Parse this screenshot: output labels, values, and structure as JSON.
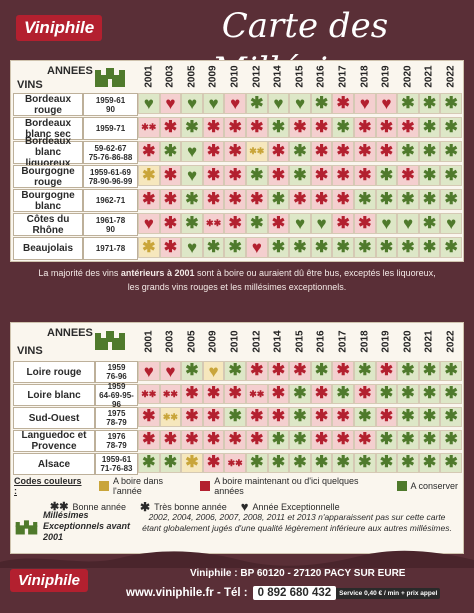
{
  "brand": {
    "name": "Viniphile",
    "title": "Carte des Millésimes"
  },
  "colors": {
    "red": "#b3202f",
    "green": "#4f7a2c",
    "gold": "#c9a53a",
    "bg": "#5a2f37"
  },
  "table1": {
    "hdr_annees": "ANNEES",
    "hdr_vins": "VINS",
    "years": [
      "2001",
      "2003",
      "2005",
      "2009",
      "2010",
      "2012",
      "2014",
      "2015",
      "2016",
      "2017",
      "2018",
      "2019",
      "2020",
      "2021",
      "2022"
    ],
    "rows": [
      {
        "wine": "Bordeaux rouge",
        "best": "1959-61\n90",
        "cells": [
          "gH",
          "rH",
          "gH",
          "gH",
          "rH",
          "gS",
          "gH",
          "gH",
          "gS",
          "rS",
          "rH",
          "rH",
          "gS",
          "gS",
          "gS"
        ]
      },
      {
        "wine": "Bordeaux blanc sec",
        "best": "1959-71",
        "cells": [
          "rD",
          "rS",
          "gS",
          "rS",
          "rS",
          "rS",
          "gS",
          "rS",
          "rS",
          "gS",
          "rS",
          "rS",
          "rS",
          "gS",
          "gS"
        ]
      },
      {
        "wine": "Bordeaux blanc liquoreux",
        "best": "59-62-67\n75-76-86-88",
        "cells": [
          "rS",
          "gS",
          "gH",
          "rS",
          "rS",
          "yD",
          "rS",
          "gS",
          "rS",
          "rS",
          "rS",
          "rS",
          "gS",
          "gS",
          "gS"
        ]
      },
      {
        "wine": "Bourgogne rouge",
        "best": "1959-61-69\n78-90-96-99",
        "cells": [
          "yS",
          "rS",
          "gH",
          "rS",
          "rS",
          "gS",
          "rS",
          "gS",
          "rS",
          "rS",
          "rS",
          "gS",
          "rS",
          "gS",
          "gS"
        ]
      },
      {
        "wine": "Bourgogne blanc",
        "best": "1962-71",
        "cells": [
          "rS",
          "rS",
          "gS",
          "rS",
          "rS",
          "rS",
          "gS",
          "rS",
          "rS",
          "rS",
          "gS",
          "gS",
          "gS",
          "gS",
          "gS"
        ]
      },
      {
        "wine": "Côtes du Rhône",
        "best": "1961-78\n90",
        "cells": [
          "rH",
          "rS",
          "gS",
          "rD",
          "rS",
          "gS",
          "rS",
          "gH",
          "gH",
          "rS",
          "rS",
          "gH",
          "gH",
          "gS",
          "gH"
        ]
      },
      {
        "wine": "Beaujolais",
        "best": "1971-78",
        "cells": [
          "yS",
          "rS",
          "gH",
          "gS",
          "gS",
          "rH",
          "gS",
          "gS",
          "gS",
          "gS",
          "gS",
          "gS",
          "gS",
          "gS",
          "gS"
        ]
      }
    ]
  },
  "note": {
    "line1a": "La majorité des vins ",
    "line1b": "antérieurs à 2001",
    "line1c": " sont à boire ou auraient dû être bus, exceptés les liquoreux,",
    "line2": "les grands vins rouges et les millésimes exceptionnels."
  },
  "table2": {
    "hdr_annees": "ANNEES",
    "hdr_vins": "VINS",
    "years": [
      "2001",
      "2003",
      "2005",
      "2009",
      "2010",
      "2012",
      "2014",
      "2015",
      "2016",
      "2017",
      "2018",
      "2019",
      "2020",
      "2021",
      "2022"
    ],
    "rows": [
      {
        "wine": "Loire rouge",
        "best": "1959\n76-96",
        "cells": [
          "rH",
          "rH",
          "gS",
          "yH",
          "gS",
          "rS",
          "rS",
          "rS",
          "gS",
          "rS",
          "gS",
          "rS",
          "gS",
          "gS",
          "gS"
        ]
      },
      {
        "wine": "Loire blanc",
        "best": "1959\n64-69-95-96",
        "cells": [
          "rD",
          "rD",
          "rS",
          "rS",
          "rS",
          "rD",
          "rS",
          "gS",
          "rS",
          "gS",
          "rS",
          "gS",
          "gS",
          "gS",
          "gS"
        ]
      },
      {
        "wine": "Sud-Ouest",
        "best": "1975\n78-79",
        "cells": [
          "rS",
          "yD",
          "rS",
          "rS",
          "gS",
          "rS",
          "rS",
          "gS",
          "rS",
          "rS",
          "gS",
          "rS",
          "gS",
          "gS",
          "gS"
        ]
      },
      {
        "wine": "Languedoc et Provence",
        "best": "1976\n78-79",
        "cells": [
          "rS",
          "rS",
          "rS",
          "rS",
          "rS",
          "rS",
          "gS",
          "gS",
          "rS",
          "rS",
          "rS",
          "gS",
          "gS",
          "gS",
          "gS"
        ]
      },
      {
        "wine": "Alsace",
        "best": "1959-61\n71-76-83",
        "cells": [
          "gS",
          "gS",
          "yS",
          "rS",
          "rD",
          "gS",
          "gS",
          "gS",
          "gS",
          "gS",
          "gS",
          "gS",
          "gS",
          "gS",
          "gS"
        ]
      }
    ]
  },
  "legend": {
    "title": "Codes couleurs :",
    "a_boire": "A boire dans l'année",
    "maintenant": "A boire maintenant ou d'ici quelques années",
    "conserver": "A conserver",
    "bonne": "Bonne année",
    "tres_bonne": "Très bonne année",
    "exceptionnelle": "Année Exceptionnelle"
  },
  "exceptional": {
    "title": "Millésimes",
    "subtitle": "Exceptionnels avant 2001"
  },
  "footnote": "2002, 2004, 2006, 2007, 2008, 2011 et 2013 n'apparaissent pas sur cette carte étant globalement jugés d'une qualité légèrement inférieure aux autres millésimes.",
  "footer": {
    "address": "Viniphile : BP 60120 - 27120 PACY SUR EURE",
    "site": "www.viniphile.fr - Tél :",
    "phone": "0 892 680 432",
    "service": "Service 0,40 € / min + prix appel"
  }
}
